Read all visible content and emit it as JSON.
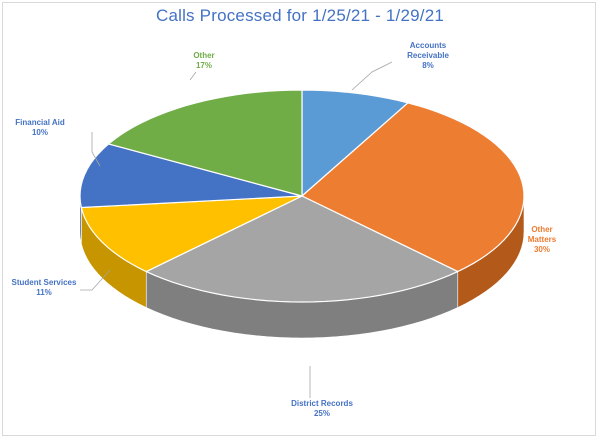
{
  "chart_data": {
    "type": "pie",
    "title": "Calls Processed for 1/25/21 - 1/29/21",
    "categories": [
      "Accounts Receivable",
      "Other Matters",
      "District Records",
      "Student Services",
      "Financial Aid",
      "Other"
    ],
    "values": [
      8,
      30,
      25,
      11,
      10,
      17
    ],
    "value_labels": [
      "8%",
      "30%",
      "25%",
      "11%",
      "10%",
      "17%"
    ],
    "colors": [
      "#5b9bd5",
      "#ed7d31",
      "#a5a5a5",
      "#ffc000",
      "#4472c4",
      "#70ad47"
    ],
    "side_colors": [
      "#3f7ab0",
      "#b35a1b",
      "#7f7f7f",
      "#c69500",
      "#2f5597",
      "#4f8a2c"
    ],
    "style": "3d-pie",
    "legend": "none"
  }
}
